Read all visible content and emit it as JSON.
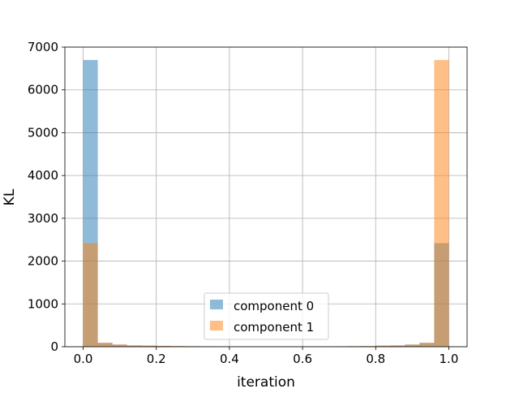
{
  "chart_data": {
    "type": "bar",
    "subtype": "overlaid histogram",
    "xlabel": "iteration",
    "ylabel": "KL",
    "xlim": [
      -0.05,
      1.05
    ],
    "ylim": [
      0,
      7000
    ],
    "xticks": [
      0.0,
      0.2,
      0.4,
      0.6,
      0.8,
      1.0
    ],
    "xtick_labels": [
      "0.0",
      "0.2",
      "0.4",
      "0.6",
      "0.8",
      "1.0"
    ],
    "yticks": [
      0,
      1000,
      2000,
      3000,
      4000,
      5000,
      6000,
      7000
    ],
    "ytick_labels": [
      "0",
      "1000",
      "2000",
      "3000",
      "4000",
      "5000",
      "6000",
      "7000"
    ],
    "grid": true,
    "legend_position": "lower center",
    "bin_edges": [
      0.0,
      0.04,
      0.08,
      0.12,
      0.16,
      0.2,
      0.24,
      0.28,
      0.32,
      0.36,
      0.4,
      0.44,
      0.48,
      0.52,
      0.56,
      0.6,
      0.64,
      0.68,
      0.72,
      0.76,
      0.8,
      0.84,
      0.88,
      0.92,
      0.96,
      1.0
    ],
    "series": [
      {
        "name": "component 0",
        "color": "#1f77b4",
        "alpha": 0.5,
        "values": [
          6700,
          90,
          50,
          30,
          25,
          20,
          15,
          12,
          10,
          8,
          6,
          5,
          5,
          5,
          5,
          6,
          8,
          10,
          12,
          15,
          25,
          30,
          50,
          90,
          2420
        ]
      },
      {
        "name": "component 1",
        "color": "#ff7f0e",
        "alpha": 0.5,
        "values": [
          2420,
          90,
          50,
          30,
          25,
          20,
          15,
          12,
          10,
          8,
          6,
          5,
          5,
          5,
          5,
          6,
          8,
          10,
          12,
          15,
          25,
          30,
          50,
          90,
          6700
        ]
      }
    ]
  }
}
